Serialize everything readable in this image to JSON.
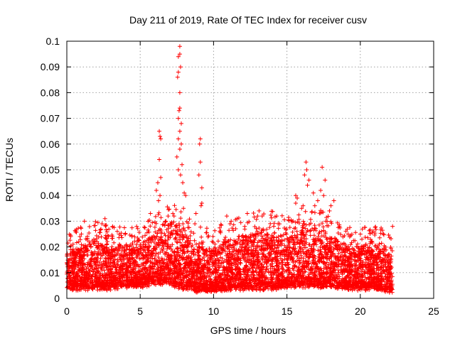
{
  "chart_data": {
    "type": "scatter",
    "title": "Day 211 of 2019, Rate Of TEC Index for receiver cusv",
    "xlabel": "GPS time / hours",
    "ylabel": "ROTI / TECUs",
    "xlim": [
      0,
      25
    ],
    "ylim": [
      0,
      0.1
    ],
    "x_ticks": [
      "0",
      "5",
      "10",
      "15",
      "20",
      "25"
    ],
    "y_ticks": [
      "0",
      "0.01",
      "0.02",
      "0.03",
      "0.04",
      "0.05",
      "0.06",
      "0.07",
      "0.08",
      "0.09",
      "0.1"
    ],
    "grid": true,
    "marker": "+",
    "series_color": "#ff0000",
    "data_range_hours": [
      0,
      22.2
    ],
    "series": [
      {
        "name": "ROTI",
        "note": "dense band of points, representative profile below",
        "baseline_band": [
          [
            0,
            0.004,
            0.018
          ],
          [
            1,
            0.004,
            0.02
          ],
          [
            2,
            0.004,
            0.022
          ],
          [
            3,
            0.004,
            0.02
          ],
          [
            4,
            0.005,
            0.02
          ],
          [
            5,
            0.005,
            0.02
          ],
          [
            6,
            0.006,
            0.025
          ],
          [
            7,
            0.006,
            0.03
          ],
          [
            8,
            0.004,
            0.025
          ],
          [
            9,
            0.003,
            0.02
          ],
          [
            10,
            0.003,
            0.02
          ],
          [
            11,
            0.004,
            0.022
          ],
          [
            12,
            0.004,
            0.024
          ],
          [
            13,
            0.004,
            0.026
          ],
          [
            14,
            0.004,
            0.026
          ],
          [
            15,
            0.005,
            0.024
          ],
          [
            16,
            0.005,
            0.026
          ],
          [
            17,
            0.005,
            0.028
          ],
          [
            18,
            0.005,
            0.024
          ],
          [
            19,
            0.004,
            0.02
          ],
          [
            20,
            0.004,
            0.02
          ],
          [
            21,
            0.004,
            0.02
          ],
          [
            22,
            0.003,
            0.02
          ]
        ],
        "outliers": [
          [
            7.7,
            0.098
          ],
          [
            7.7,
            0.095
          ],
          [
            7.6,
            0.094
          ],
          [
            7.75,
            0.09
          ],
          [
            7.6,
            0.088
          ],
          [
            7.55,
            0.086
          ],
          [
            7.7,
            0.08
          ],
          [
            7.7,
            0.074
          ],
          [
            7.65,
            0.073
          ],
          [
            7.6,
            0.07
          ],
          [
            7.8,
            0.068
          ],
          [
            7.7,
            0.065
          ],
          [
            7.6,
            0.062
          ],
          [
            7.8,
            0.06
          ],
          [
            7.7,
            0.058
          ],
          [
            7.5,
            0.055
          ],
          [
            7.85,
            0.052
          ],
          [
            7.6,
            0.05
          ],
          [
            7.75,
            0.048
          ],
          [
            7.9,
            0.045
          ],
          [
            8.0,
            0.041
          ],
          [
            8.1,
            0.04
          ],
          [
            7.95,
            0.035
          ],
          [
            6.3,
            0.065
          ],
          [
            6.35,
            0.063
          ],
          [
            6.4,
            0.062
          ],
          [
            6.3,
            0.054
          ],
          [
            6.4,
            0.047
          ],
          [
            6.2,
            0.045
          ],
          [
            6.35,
            0.04
          ],
          [
            6.1,
            0.042
          ],
          [
            6.25,
            0.038
          ],
          [
            9.1,
            0.062
          ],
          [
            9.05,
            0.06
          ],
          [
            9.1,
            0.053
          ],
          [
            9.0,
            0.048
          ],
          [
            9.2,
            0.043
          ],
          [
            9.2,
            0.037
          ],
          [
            9.15,
            0.036
          ],
          [
            16.3,
            0.053
          ],
          [
            16.35,
            0.05
          ],
          [
            16.2,
            0.048
          ],
          [
            16.5,
            0.046
          ],
          [
            16.4,
            0.044
          ],
          [
            15.6,
            0.04
          ],
          [
            15.7,
            0.039
          ],
          [
            15.6,
            0.037
          ],
          [
            16.1,
            0.036
          ],
          [
            16.0,
            0.035
          ],
          [
            17.4,
            0.051
          ],
          [
            17.6,
            0.046
          ],
          [
            17.3,
            0.042
          ],
          [
            17.5,
            0.04
          ],
          [
            17.1,
            0.038
          ],
          [
            16.8,
            0.041
          ],
          [
            16.9,
            0.036
          ],
          [
            18.2,
            0.038
          ],
          [
            18.0,
            0.036
          ],
          [
            17.9,
            0.034
          ],
          [
            13.1,
            0.034
          ],
          [
            13.0,
            0.032
          ],
          [
            12.3,
            0.033
          ],
          [
            11.6,
            0.031
          ],
          [
            10.9,
            0.032
          ],
          [
            11.2,
            0.03
          ],
          [
            1.2,
            0.03
          ],
          [
            2.6,
            0.031
          ],
          [
            2.4,
            0.029
          ],
          [
            5.7,
            0.033
          ],
          [
            6.9,
            0.032
          ],
          [
            8.8,
            0.033
          ],
          [
            14.3,
            0.032
          ],
          [
            22.2,
            0.028
          ]
        ]
      }
    ]
  }
}
